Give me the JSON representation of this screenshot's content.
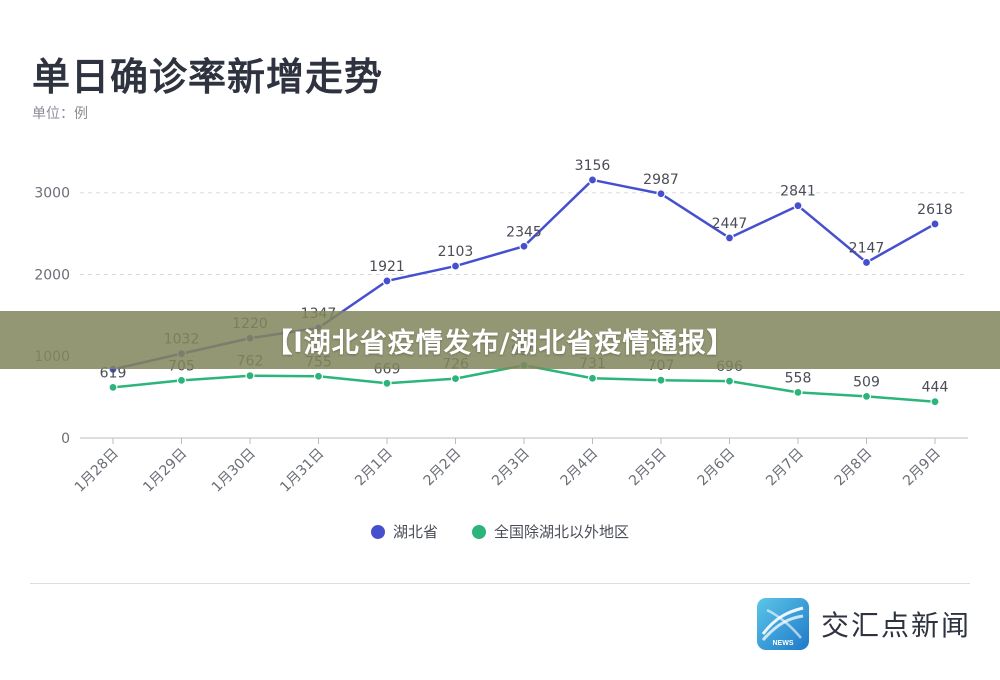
{
  "chart_data": {
    "type": "line",
    "title": "单日确诊率新增走势",
    "unit_label": "单位：例",
    "categories": [
      "1月28日",
      "1月29日",
      "1月30日",
      "1月31日",
      "2月1日",
      "2月2日",
      "2月3日",
      "2月4日",
      "2月5日",
      "2月6日",
      "2月7日",
      "2月8日",
      "2月9日"
    ],
    "series": [
      {
        "name": "湖北省",
        "color": "#4650cf",
        "values": [
          840,
          1032,
          1220,
          1347,
          1921,
          2103,
          2345,
          3156,
          2987,
          2447,
          2841,
          2147,
          2618
        ],
        "labels": [
          "",
          "1032",
          "1220",
          "1347",
          "1921",
          "2103",
          "2345",
          "3156",
          "2987",
          "2447",
          "2841",
          "2147",
          "2618"
        ]
      },
      {
        "name": "全国除湖北以外地区",
        "color": "#2bb57a",
        "values": [
          619,
          705,
          762,
          755,
          669,
          726,
          890,
          731,
          707,
          696,
          558,
          509,
          444
        ],
        "labels": [
          "619",
          "705",
          "762",
          "755",
          "669",
          "726",
          "890",
          "731",
          "707",
          "696",
          "558",
          "509",
          "444"
        ]
      }
    ],
    "yticks": [
      0,
      1000,
      2000,
      3000
    ],
    "ylim": [
      0,
      3400
    ],
    "grid": true,
    "legend_position": "bottom-center"
  },
  "banner": {
    "text": "【l湖北省疫情发布/湖北省疫情通报】"
  },
  "brand": {
    "name": "交汇点新闻",
    "logo_text": "NEWS",
    "logo_icon": "newspaper-stripes-icon"
  }
}
